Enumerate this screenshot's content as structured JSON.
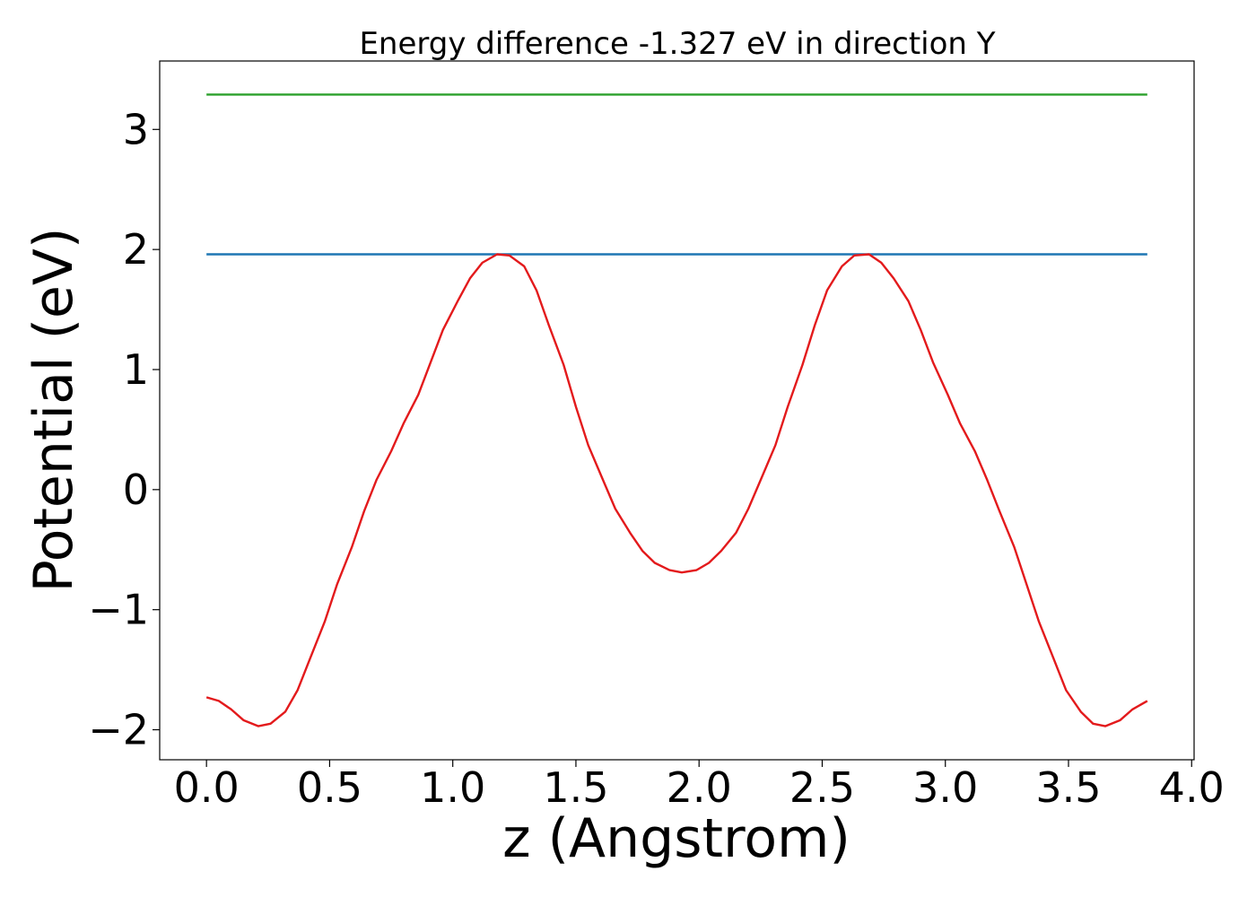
{
  "chart_data": {
    "type": "line",
    "title": "Energy difference -1.327 eV in direction Y",
    "xlabel": "z (Angstrom)",
    "ylabel": "Potential (eV)",
    "xlim": [
      -0.19,
      4.01
    ],
    "ylim": [
      -2.25,
      3.57
    ],
    "xticks": [
      0.0,
      0.5,
      1.0,
      1.5,
      2.0,
      2.5,
      3.0,
      3.5,
      4.0
    ],
    "xtick_labels": [
      "0.0",
      "0.5",
      "1.0",
      "1.5",
      "2.0",
      "2.5",
      "3.0",
      "3.5",
      "4.0"
    ],
    "yticks": [
      -2,
      -1,
      0,
      1,
      2,
      3
    ],
    "ytick_labels": [
      "−2",
      "−1",
      "0",
      "1",
      "2",
      "3"
    ],
    "grid": false,
    "legend": false,
    "series": [
      {
        "color": "#1f77b4",
        "x": [
          0.0,
          3.82
        ],
        "y": [
          1.96,
          1.96
        ]
      },
      {
        "color": "#2ca02c",
        "x": [
          0.0,
          3.82
        ],
        "y": [
          3.29,
          3.29
        ]
      },
      {
        "color": "#e31a1c",
        "x": [
          0.0,
          0.05,
          0.1,
          0.15,
          0.21,
          0.26,
          0.32,
          0.37,
          0.42,
          0.48,
          0.53,
          0.59,
          0.64,
          0.69,
          0.75,
          0.8,
          0.86,
          0.91,
          0.96,
          1.02,
          1.07,
          1.12,
          1.18,
          1.23,
          1.29,
          1.34,
          1.39,
          1.45,
          1.5,
          1.55,
          1.61,
          1.66,
          1.72,
          1.77,
          1.82,
          1.88,
          1.93,
          1.99,
          2.04,
          2.09,
          2.15,
          2.2,
          2.25,
          2.31,
          2.36,
          2.42,
          2.47,
          2.52,
          2.58,
          2.63,
          2.69,
          2.74,
          2.79,
          2.85,
          2.9,
          2.95,
          3.01,
          3.06,
          3.12,
          3.17,
          3.22,
          3.28,
          3.33,
          3.38,
          3.44,
          3.49,
          3.55,
          3.6,
          3.65,
          3.71,
          3.76,
          3.82
        ],
        "y": [
          -1.73,
          -1.76,
          -1.83,
          -1.92,
          -1.97,
          -1.95,
          -1.85,
          -1.67,
          -1.41,
          -1.1,
          -0.79,
          -0.48,
          -0.18,
          0.08,
          0.32,
          0.55,
          0.79,
          1.06,
          1.33,
          1.57,
          1.76,
          1.89,
          1.96,
          1.95,
          1.86,
          1.66,
          1.37,
          1.04,
          0.69,
          0.37,
          0.08,
          -0.16,
          -0.36,
          -0.51,
          -0.61,
          -0.67,
          -0.69,
          -0.67,
          -0.61,
          -0.51,
          -0.36,
          -0.16,
          0.08,
          0.37,
          0.69,
          1.04,
          1.37,
          1.66,
          1.86,
          1.95,
          1.96,
          1.89,
          1.76,
          1.57,
          1.33,
          1.06,
          0.79,
          0.55,
          0.32,
          0.08,
          -0.18,
          -0.48,
          -0.79,
          -1.1,
          -1.41,
          -1.67,
          -1.85,
          -1.95,
          -1.97,
          -1.92,
          -1.83,
          -1.76
        ]
      }
    ]
  }
}
